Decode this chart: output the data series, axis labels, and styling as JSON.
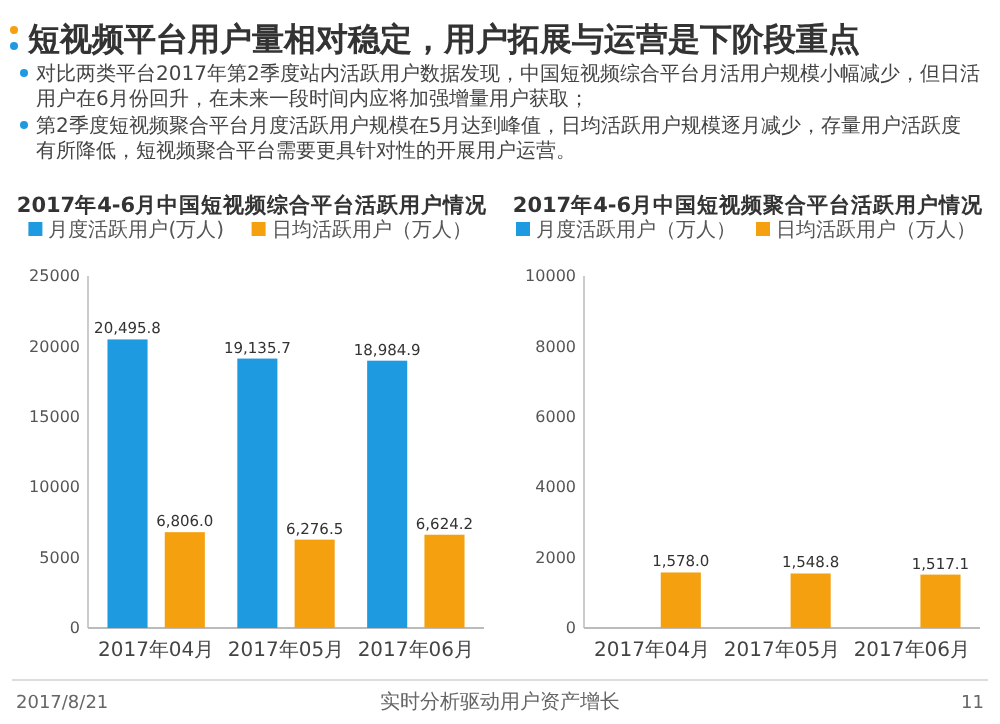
{
  "chart_data": [
    {
      "type": "bar",
      "title": "2017年4-6月中国短视频综合平台活跃用户情况",
      "categories": [
        "2017年04月",
        "2017年05月",
        "2017年06月"
      ],
      "series": [
        {
          "name": "月度活跃用户(万人)",
          "color": "#1e9be0",
          "values": [
            20495.8,
            19135.7,
            18984.9
          ],
          "value_labels": [
            "20,495.8",
            "19,135.7",
            "18,984.9"
          ]
        },
        {
          "name": "日均活跃用户（万人）",
          "color": "#f5a00e",
          "values": [
            6806.0,
            6276.5,
            6624.2
          ],
          "value_labels": [
            "6,806.0",
            "6,276.5",
            "6,624.2"
          ]
        }
      ],
      "ylim": [
        0,
        25000
      ],
      "yticks": [
        0,
        5000,
        10000,
        15000,
        20000,
        25000
      ],
      "legend": "top",
      "annotations": [
        "短视频平台用户量相对稳定，用户拓展与运营是下阶段重点",
        "对比两类平台2017年第2季度站内活跃用户数据发现，中国短视频综合平台月活用户规模小幅减少，但日活用户在6月份回升，在未来一段时间内应将加强增量用户获取；",
        "第2季度短视频聚合平台月度活跃用户规模在5月达到峰值，日均活跃用户规模逐月减少，存量用户活跃度有所降低，短视频聚合平台需要更具针对性的开展用户运营。",
        "2017/8/21",
        "实时分析驱动用户资产增长",
        "11"
      ]
    },
    {
      "type": "bar",
      "title": "2017年4-6月中国短视频聚合平台活跃用户情况",
      "categories": [
        "2017年04月",
        "2017年05月",
        "2017年06月"
      ],
      "series": [
        {
          "name": "月度活跃用户（万人）",
          "color": "#1e9be0",
          "values": [
            null,
            null,
            null
          ],
          "value_labels": [
            null,
            null,
            null
          ]
        },
        {
          "name": "日均活跃用户（万人）",
          "color": "#f5a00e",
          "values": [
            1578.0,
            1548.8,
            1517.1
          ],
          "value_labels": [
            "1,578.0",
            "1,548.8",
            "1,517.1"
          ]
        }
      ],
      "ylim": [
        0,
        10000
      ],
      "yticks": [
        0,
        2000,
        4000,
        6000,
        8000,
        10000
      ],
      "legend": "top"
    }
  ]
}
